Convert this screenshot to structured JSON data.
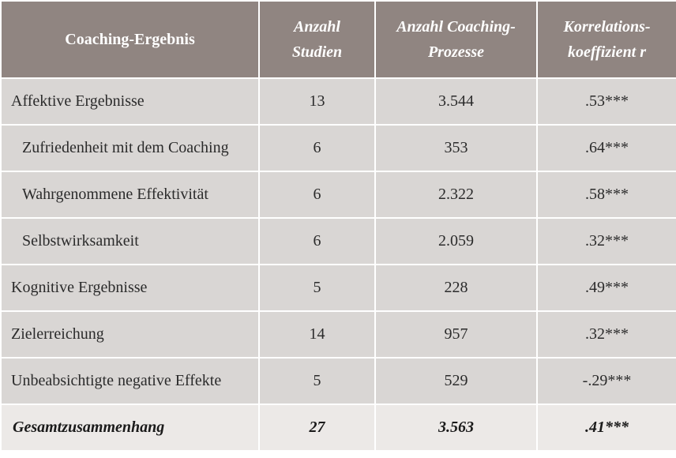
{
  "table": {
    "headers": [
      {
        "line1": "Coaching-Ergebnis",
        "line2": ""
      },
      {
        "line1": "Anzahl",
        "line2": "Studien"
      },
      {
        "line1": "Anzahl Coaching-",
        "line2": "Prozesse"
      },
      {
        "line1": "Korrelations-",
        "line2": "koeffizient r"
      }
    ],
    "rows": [
      {
        "label": "Affektive Ergebnisse",
        "studies": "13",
        "processes": "3.544",
        "r": ".53***"
      },
      {
        "label": "Zufriedenheit mit dem Coaching",
        "studies": "6",
        "processes": "353",
        "r": ".64***"
      },
      {
        "label": "Wahrgenommene Effektivität",
        "studies": "6",
        "processes": "2.322",
        "r": ".58***"
      },
      {
        "label": "Selbstwirksamkeit",
        "studies": "6",
        "processes": "2.059",
        "r": ".32***"
      },
      {
        "label": "Kognitive Ergebnisse",
        "studies": "5",
        "processes": "228",
        "r": ".49***"
      },
      {
        "label": "Zielerreichung",
        "studies": "14",
        "processes": "957",
        "r": ".32***"
      },
      {
        "label": "Unbeabsichtigte negative Effekte",
        "studies": "5",
        "processes": "529",
        "r": "-.29***"
      }
    ],
    "total": {
      "label": "Gesamtzusammenhang",
      "studies": "27",
      "processes": "3.563",
      "r": ".41***"
    }
  }
}
